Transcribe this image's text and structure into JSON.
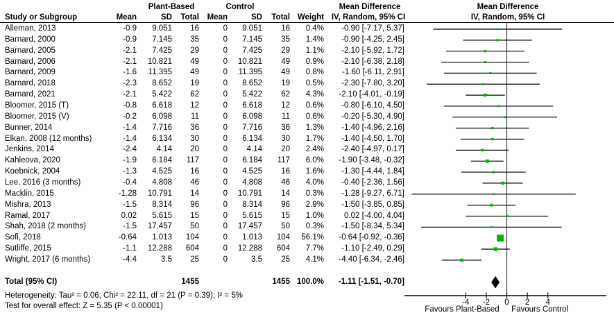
{
  "headers": {
    "group1": "Plant-Based",
    "group2": "Control",
    "md_col": "Mean Difference",
    "md_plot": "Mean Difference",
    "sub_col": "IV, Random, 95% CI",
    "sub_plot": "IV, Random, 95% CI",
    "study": "Study or Subgroup",
    "mean": "Mean",
    "sd": "SD",
    "total": "Total",
    "weight": "Weight"
  },
  "colors": {
    "marker_green": "#00b800",
    "diamond_black": "#000000",
    "line_black": "#000000",
    "zero_line": "#3a3a3a"
  },
  "chart_data": {
    "type": "forest",
    "title": "Mean Difference, IV, Random, 95% CI",
    "xlim": [
      -10,
      9.7
    ],
    "ticks": [
      -4,
      -2,
      0,
      2,
      4
    ],
    "tick_labels": [
      "-4",
      "-2",
      "0",
      "2",
      "4"
    ],
    "favours_left": "Favours Plant-Based",
    "favours_right": "Favours Control",
    "studies": [
      {
        "name": "Alleman, 2013",
        "pb_mean": "-0.9",
        "pb_sd": "9.051",
        "pb_total": "16",
        "c_mean": "0",
        "c_sd": "9.051",
        "c_total": "16",
        "weight": "0.4%",
        "weight_num": 0.4,
        "ci_text": "-0.90 [-7.17, 5.37]",
        "md": -0.9,
        "lo": -7.17,
        "hi": 5.37
      },
      {
        "name": "Barnard, 2000",
        "pb_mean": "-0.9",
        "pb_sd": "7.145",
        "pb_total": "35",
        "c_mean": "0",
        "c_sd": "7.145",
        "c_total": "35",
        "weight": "1.4%",
        "weight_num": 1.4,
        "ci_text": "-0.90 [-4.25, 2.45]",
        "md": -0.9,
        "lo": -4.25,
        "hi": 2.45
      },
      {
        "name": "Barnard, 2005",
        "pb_mean": "-2.1",
        "pb_sd": "7.425",
        "pb_total": "29",
        "c_mean": "0",
        "c_sd": "7.425",
        "c_total": "29",
        "weight": "1.1%",
        "weight_num": 1.1,
        "ci_text": "-2.10 [-5.92, 1.72]",
        "md": -2.1,
        "lo": -5.92,
        "hi": 1.72
      },
      {
        "name": "Barnard, 2006",
        "pb_mean": "-2.1",
        "pb_sd": "10.821",
        "pb_total": "49",
        "c_mean": "0",
        "c_sd": "10.821",
        "c_total": "49",
        "weight": "0.9%",
        "weight_num": 0.9,
        "ci_text": "-2.10 [-6.38, 2.18]",
        "md": -2.1,
        "lo": -6.38,
        "hi": 2.18
      },
      {
        "name": "Barnard, 2009",
        "pb_mean": "-1.6",
        "pb_sd": "11.395",
        "pb_total": "49",
        "c_mean": "0",
        "c_sd": "11.395",
        "c_total": "49",
        "weight": "0.8%",
        "weight_num": 0.8,
        "ci_text": "-1.60 [-6.11, 2.91]",
        "md": -1.6,
        "lo": -6.11,
        "hi": 2.91
      },
      {
        "name": "Barnard, 2018",
        "pb_mean": "-2.3",
        "pb_sd": "8.652",
        "pb_total": "19",
        "c_mean": "0",
        "c_sd": "8.652",
        "c_total": "19",
        "weight": "0.5%",
        "weight_num": 0.5,
        "ci_text": "-2.30 [-7.80, 3.20]",
        "md": -2.3,
        "lo": -7.8,
        "hi": 3.2
      },
      {
        "name": "Barnard, 2021",
        "pb_mean": "-2.1",
        "pb_sd": "5.422",
        "pb_total": "62",
        "c_mean": "0",
        "c_sd": "5.422",
        "c_total": "62",
        "weight": "4.3%",
        "weight_num": 4.3,
        "ci_text": "-2.10 [-4.01, -0.19]",
        "md": -2.1,
        "lo": -4.01,
        "hi": -0.19
      },
      {
        "name": "Bloomer, 2015 (T)",
        "pb_mean": "-0.8",
        "pb_sd": "6.618",
        "pb_total": "12",
        "c_mean": "0",
        "c_sd": "6.618",
        "c_total": "12",
        "weight": "0.6%",
        "weight_num": 0.6,
        "ci_text": "-0.80 [-6.10, 4.50]",
        "md": -0.8,
        "lo": -6.1,
        "hi": 4.5
      },
      {
        "name": "Bloomer, 2015 (V)",
        "pb_mean": "-0.2",
        "pb_sd": "6.098",
        "pb_total": "11",
        "c_mean": "0",
        "c_sd": "6.098",
        "c_total": "11",
        "weight": "0.6%",
        "weight_num": 0.6,
        "ci_text": "-0.20 [-5.30, 4.90]",
        "md": -0.2,
        "lo": -5.3,
        "hi": 4.9
      },
      {
        "name": "Bunner, 2014",
        "pb_mean": "-1.4",
        "pb_sd": "7.716",
        "pb_total": "36",
        "c_mean": "0",
        "c_sd": "7.716",
        "c_total": "36",
        "weight": "1.3%",
        "weight_num": 1.3,
        "ci_text": "-1.40 [-4.96, 2.16]",
        "md": -1.4,
        "lo": -4.96,
        "hi": 2.16
      },
      {
        "name": "Elkan, 2008 (12 months)",
        "pb_mean": "-1.4",
        "pb_sd": "6.134",
        "pb_total": "30",
        "c_mean": "0",
        "c_sd": "6.134",
        "c_total": "30",
        "weight": "1.7%",
        "weight_num": 1.7,
        "ci_text": "-1.40 [-4.50, 1.70]",
        "md": -1.4,
        "lo": -4.5,
        "hi": 1.7
      },
      {
        "name": "Jenkins, 2014",
        "pb_mean": "-2.4",
        "pb_sd": "4.14",
        "pb_total": "20",
        "c_mean": "0",
        "c_sd": "4.14",
        "c_total": "20",
        "weight": "2.4%",
        "weight_num": 2.4,
        "ci_text": "-2.40 [-4.97, 0.17]",
        "md": -2.4,
        "lo": -4.97,
        "hi": 0.17
      },
      {
        "name": "Kahleova, 2020",
        "pb_mean": "-1.9",
        "pb_sd": "6.184",
        "pb_total": "117",
        "c_mean": "0",
        "c_sd": "6.184",
        "c_total": "117",
        "weight": "6.0%",
        "weight_num": 6.0,
        "ci_text": "-1.90 [-3.48, -0.32]",
        "md": -1.9,
        "lo": -3.48,
        "hi": -0.32
      },
      {
        "name": "Koebnick, 2004",
        "pb_mean": "-1.3",
        "pb_sd": "4.525",
        "pb_total": "16",
        "c_mean": "0",
        "c_sd": "4.525",
        "c_total": "16",
        "weight": "1.6%",
        "weight_num": 1.6,
        "ci_text": "-1.30 [-4.44, 1.84]",
        "md": -1.3,
        "lo": -4.44,
        "hi": 1.84
      },
      {
        "name": "Lee, 2016 (3 months)",
        "pb_mean": "-0.4",
        "pb_sd": "4.808",
        "pb_total": "46",
        "c_mean": "0",
        "c_sd": "4.808",
        "c_total": "46",
        "weight": "4.0%",
        "weight_num": 4.0,
        "ci_text": "-0.40 [-2.36, 1.56]",
        "md": -0.4,
        "lo": -2.36,
        "hi": 1.56
      },
      {
        "name": "Macklin, 2015",
        "pb_mean": "-1.28",
        "pb_sd": "10.791",
        "pb_total": "14",
        "c_mean": "0",
        "c_sd": "10.791",
        "c_total": "14",
        "weight": "0.3%",
        "weight_num": 0.3,
        "ci_text": "-1.28 [-9.27, 6.71]",
        "md": -1.28,
        "lo": -9.27,
        "hi": 6.71
      },
      {
        "name": "Mishra, 2013",
        "pb_mean": "-1.5",
        "pb_sd": "8.314",
        "pb_total": "96",
        "c_mean": "0",
        "c_sd": "8.314",
        "c_total": "96",
        "weight": "2.9%",
        "weight_num": 2.9,
        "ci_text": "-1.50 [-3.85, 0.85]",
        "md": -1.5,
        "lo": -3.85,
        "hi": 0.85
      },
      {
        "name": "Ramal, 2017",
        "pb_mean": "0.02",
        "pb_sd": "5.615",
        "pb_total": "15",
        "c_mean": "0",
        "c_sd": "5.615",
        "c_total": "15",
        "weight": "1.0%",
        "weight_num": 1.0,
        "ci_text": "0.02 [-4.00, 4.04]",
        "md": 0.02,
        "lo": -4.0,
        "hi": 4.04
      },
      {
        "name": "Shah, 2018 (2 months)",
        "pb_mean": "-1.5",
        "pb_sd": "17.457",
        "pb_total": "50",
        "c_mean": "0",
        "c_sd": "17.457",
        "c_total": "50",
        "weight": "0.3%",
        "weight_num": 0.3,
        "ci_text": "-1.50 [-8.34, 5.34]",
        "md": -1.5,
        "lo": -8.34,
        "hi": 5.34
      },
      {
        "name": "Sofi, 2018",
        "pb_mean": "-0.64",
        "pb_sd": "1.013",
        "pb_total": "104",
        "c_mean": "0",
        "c_sd": "1.013",
        "c_total": "104",
        "weight": "56.1%",
        "weight_num": 56.1,
        "ci_text": "-0.64 [-0.92, -0.36]",
        "md": -0.64,
        "lo": -0.92,
        "hi": -0.36
      },
      {
        "name": "Sutliffe, 2015",
        "pb_mean": "-1.1",
        "pb_sd": "12.288",
        "pb_total": "604",
        "c_mean": "0",
        "c_sd": "12.288",
        "c_total": "604",
        "weight": "7.7%",
        "weight_num": 7.7,
        "ci_text": "-1.10 [-2.49, 0.29]",
        "md": -1.1,
        "lo": -2.49,
        "hi": 0.29
      },
      {
        "name": "Wright, 2017 (6 months)",
        "pb_mean": "-4.4",
        "pb_sd": "3.5",
        "pb_total": "25",
        "c_mean": "0",
        "c_sd": "3.5",
        "c_total": "25",
        "weight": "4.1%",
        "weight_num": 4.1,
        "ci_text": "-4.40 [-6.34, -2.46]",
        "md": -4.4,
        "lo": -6.34,
        "hi": -2.46
      }
    ],
    "total": {
      "label": "Total (95% CI)",
      "pb_total": "1455",
      "c_total": "1455",
      "weight": "100.0%",
      "ci_text": "-1.11 [-1.51, -0.70]",
      "md": -1.11,
      "lo": -1.51,
      "hi": -0.7
    },
    "footer": {
      "heterogeneity": "Heterogeneity: Tau² = 0.06; Chi² = 22.11, df = 21 (P = 0.39); I² = 5%",
      "overall_effect": "Test for overall effect: Z = 5.35 (P < 0.00001)"
    }
  }
}
